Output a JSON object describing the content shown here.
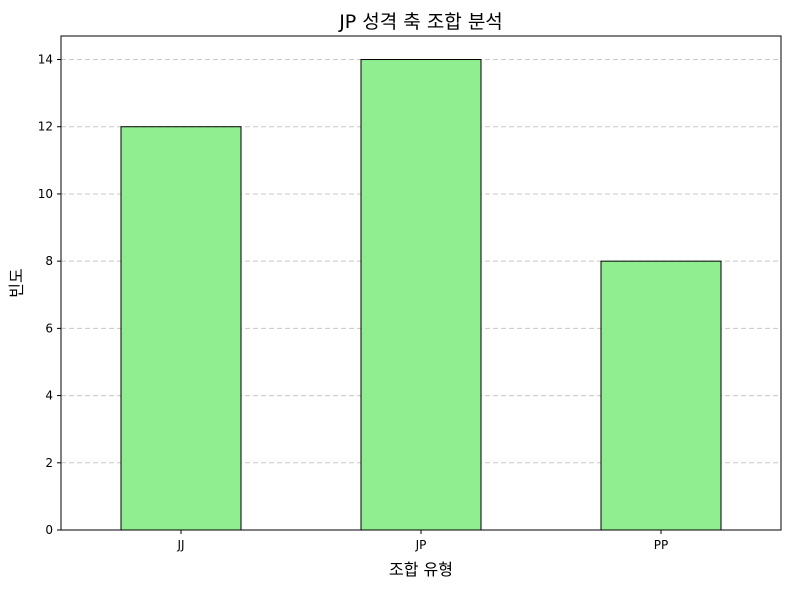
{
  "chart_data": {
    "type": "bar",
    "title": "JP 성격 축 조합 분석",
    "xlabel": "조합 유형",
    "ylabel": "빈도",
    "categories": [
      "JJ",
      "JP",
      "PP"
    ],
    "values": [
      12,
      14,
      8
    ],
    "ylim": [
      0,
      14.7
    ],
    "yticks": [
      0,
      2,
      4,
      6,
      8,
      10,
      12,
      14
    ],
    "grid": true,
    "grid_axis": "y",
    "legend": null,
    "colors": {
      "bar_fill": "#90ee90",
      "bar_edge": "#000000",
      "grid": "#c8c8c8",
      "axes": "#000000"
    }
  }
}
